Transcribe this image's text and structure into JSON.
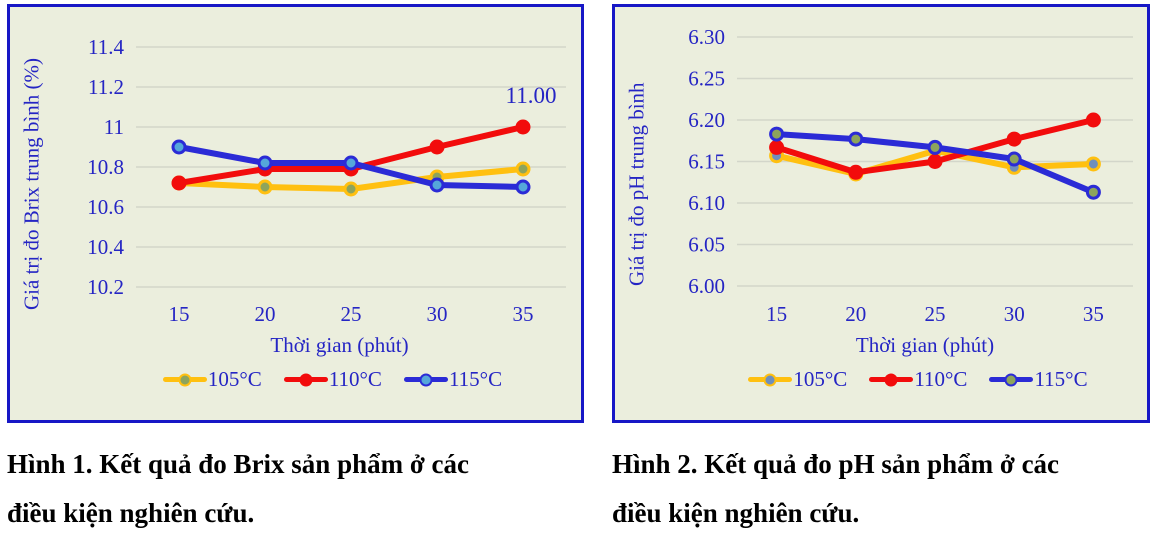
{
  "page": {
    "background": "#ffffff"
  },
  "styles": {
    "plot_background": "#EBEEDD",
    "chart_border": "#1717C6",
    "axis_text_color": "#2525C4",
    "gridline_color": "#D3D6CA",
    "caption_color": "#000000",
    "series_colors": {
      "c105": "#FFC010",
      "c110": "#F20C0C",
      "c115": "#2B2BD6"
    }
  },
  "chart_data": [
    {
      "name": "brix-chart",
      "type": "line",
      "x": [
        15,
        20,
        25,
        30,
        35
      ],
      "xlabel": "Thời gian (phút)",
      "ylabel": "Giá trị đo Brix trung bình (%)",
      "ytick_labels": [
        "11.4",
        "11.2",
        "11",
        "10.8",
        "10.6",
        "10.4",
        "10.2"
      ],
      "ytick_values": [
        11.4,
        11.2,
        11.0,
        10.8,
        10.6,
        10.4,
        10.2
      ],
      "ylim": [
        10.2,
        11.4
      ],
      "grid": true,
      "legend_position": "bottom",
      "series": [
        {
          "name": "105°C",
          "color": "#FFC010",
          "marker_fill": "#8DA45C",
          "values": [
            10.72,
            10.7,
            10.69,
            10.75,
            10.79
          ]
        },
        {
          "name": "110°C",
          "color": "#F20C0C",
          "marker_fill": "#F20C0C",
          "values": [
            10.72,
            10.79,
            10.79,
            10.9,
            11.0
          ]
        },
        {
          "name": "115°C",
          "color": "#2B2BD6",
          "marker_fill": "#55A7DA",
          "values": [
            10.9,
            10.82,
            10.82,
            10.71,
            10.7
          ]
        }
      ],
      "annotation": {
        "text": "11.00",
        "series_index": 1,
        "point_index": 4,
        "dx": 8,
        "dy": -24
      },
      "caption": {
        "line1": "Hình 1. Kết quả đo Brix sản phẩm ở các",
        "line2": "điều kiện nghiên cứu."
      }
    },
    {
      "name": "ph-chart",
      "type": "line",
      "x": [
        15,
        20,
        25,
        30,
        35
      ],
      "xlabel": "Thời gian (phút)",
      "ylabel": "Giá trị đo pH trung bình",
      "ytick_labels": [
        "6.30",
        "6.25",
        "6.20",
        "6.15",
        "6.10",
        "6.05",
        "6.00"
      ],
      "ytick_values": [
        6.3,
        6.25,
        6.2,
        6.15,
        6.1,
        6.05,
        6.0
      ],
      "ylim": [
        6.0,
        6.3
      ],
      "grid": true,
      "legend_position": "bottom",
      "series": [
        {
          "name": "105°C",
          "color": "#FFC010",
          "marker_fill": "#6F8FBC",
          "values": [
            6.157,
            6.135,
            6.163,
            6.143,
            6.147
          ]
        },
        {
          "name": "110°C",
          "color": "#F20C0C",
          "marker_fill": "#F20C0C",
          "values": [
            6.167,
            6.137,
            6.15,
            6.177,
            6.2
          ]
        },
        {
          "name": "115°C",
          "color": "#2B2BD6",
          "marker_fill": "#8DA45C",
          "values": [
            6.183,
            6.177,
            6.167,
            6.153,
            6.113
          ]
        }
      ],
      "annotation": null,
      "caption": {
        "line1": "Hình 2. Kết quả đo pH sản phẩm ở các",
        "line2": "điều kiện nghiên cứu."
      }
    }
  ]
}
